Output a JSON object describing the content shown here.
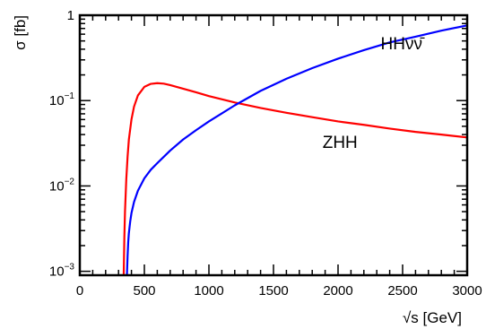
{
  "chart_data": {
    "type": "line",
    "xlabel": "√s [GeV]",
    "ylabel": "σ [fb]",
    "xlim": [
      0,
      3000
    ],
    "ylim": [
      0.0009,
      1.0
    ],
    "y_scale": "log",
    "grid": false,
    "legend": "none",
    "x_ticks": [
      {
        "value": 0,
        "label": "0"
      },
      {
        "value": 500,
        "label": "500"
      },
      {
        "value": 1000,
        "label": "1000"
      },
      {
        "value": 1500,
        "label": "1500"
      },
      {
        "value": 2000,
        "label": "2000"
      },
      {
        "value": 2500,
        "label": "2500"
      },
      {
        "value": 3000,
        "label": "3000"
      }
    ],
    "y_ticks": [
      {
        "value": 1.0,
        "base": "1",
        "exp": ""
      },
      {
        "value": 0.1,
        "base": "10",
        "exp": "−1"
      },
      {
        "value": 0.01,
        "base": "10",
        "exp": "−2"
      },
      {
        "value": 0.001,
        "base": "10",
        "exp": "−3"
      }
    ],
    "series": [
      {
        "name": "ZHH",
        "color": "#ff0000",
        "label_at": [
          1880,
          0.028
        ],
        "x": [
          340,
          345,
          350,
          360,
          370,
          380,
          400,
          420,
          450,
          500,
          550,
          600,
          650,
          700,
          800,
          900,
          1000,
          1200,
          1400,
          1600,
          1800,
          2000,
          2200,
          2400,
          2600,
          2800,
          3000
        ],
        "y": [
          0.0009,
          0.0025,
          0.005,
          0.012,
          0.022,
          0.035,
          0.06,
          0.085,
          0.115,
          0.145,
          0.157,
          0.16,
          0.158,
          0.152,
          0.138,
          0.125,
          0.113,
          0.095,
          0.082,
          0.072,
          0.064,
          0.057,
          0.052,
          0.047,
          0.043,
          0.04,
          0.037
        ]
      },
      {
        "name": "HHνν̄",
        "color": "#0000ff",
        "label_at": [
          2330,
          0.4
        ],
        "x": [
          365,
          370,
          375,
          380,
          390,
          400,
          420,
          450,
          500,
          550,
          600,
          700,
          800,
          900,
          1000,
          1200,
          1400,
          1600,
          1800,
          2000,
          2200,
          2400,
          2600,
          2800,
          3000
        ],
        "y": [
          0.0009,
          0.0015,
          0.0022,
          0.0028,
          0.0038,
          0.0048,
          0.0065,
          0.0088,
          0.0123,
          0.0155,
          0.0185,
          0.026,
          0.035,
          0.045,
          0.057,
          0.088,
          0.13,
          0.18,
          0.24,
          0.31,
          0.39,
          0.48,
          0.56,
          0.66,
          0.76
        ]
      }
    ]
  }
}
